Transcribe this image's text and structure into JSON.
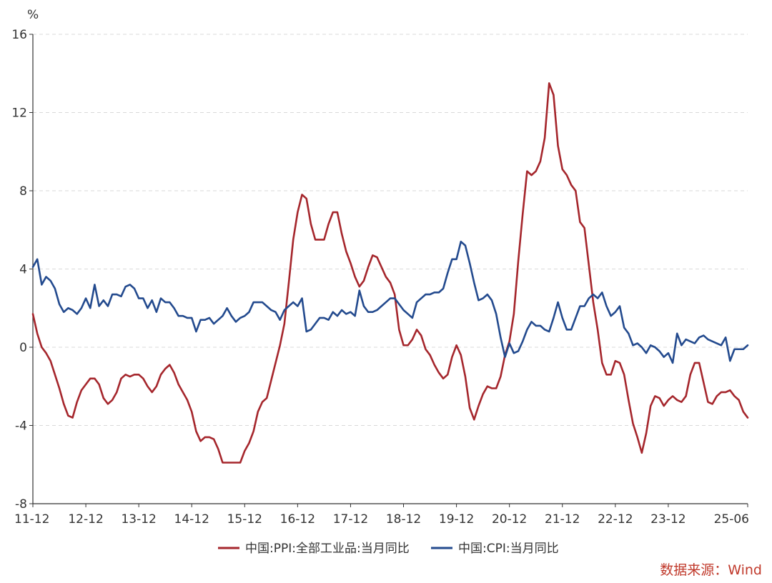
{
  "chart_data": {
    "type": "line",
    "unit_label": "%",
    "ylim": [
      -8,
      16
    ],
    "y_ticks": [
      16,
      12,
      8,
      4,
      0,
      -4,
      -8
    ],
    "x_ticks": [
      "11-12",
      "12-12",
      "13-12",
      "14-12",
      "15-12",
      "16-12",
      "17-12",
      "18-12",
      "19-12",
      "20-12",
      "21-12",
      "22-12",
      "23-12",
      "25-06"
    ],
    "x_tick_index": [
      0,
      12,
      24,
      36,
      48,
      60,
      72,
      84,
      96,
      108,
      120,
      132,
      144,
      162
    ],
    "grid": "horizontal-dashed",
    "legend_position": "bottom",
    "series": [
      {
        "name": "中国:PPI:全部工业品:当月同比",
        "color": "#a5262c",
        "values": [
          1.7,
          0.7,
          0.0,
          -0.3,
          -0.7,
          -1.4,
          -2.1,
          -2.9,
          -3.5,
          -3.6,
          -2.8,
          -2.2,
          -1.9,
          -1.6,
          -1.6,
          -1.9,
          -2.6,
          -2.9,
          -2.7,
          -2.3,
          -1.6,
          -1.4,
          -1.5,
          -1.4,
          -1.4,
          -1.6,
          -2.0,
          -2.3,
          -2.0,
          -1.4,
          -1.1,
          -0.9,
          -1.3,
          -1.9,
          -2.3,
          -2.7,
          -3.3,
          -4.3,
          -4.8,
          -4.6,
          -4.6,
          -4.7,
          -5.2,
          -5.9,
          -5.9,
          -5.9,
          -5.9,
          -5.9,
          -5.3,
          -4.9,
          -4.3,
          -3.3,
          -2.8,
          -2.6,
          -1.7,
          -0.8,
          0.1,
          1.2,
          3.3,
          5.5,
          6.9,
          7.8,
          7.6,
          6.3,
          5.5,
          5.5,
          5.5,
          6.3,
          6.9,
          6.9,
          5.8,
          4.9,
          4.3,
          3.6,
          3.1,
          3.4,
          4.1,
          4.7,
          4.6,
          4.1,
          3.6,
          3.3,
          2.7,
          0.9,
          0.1,
          0.1,
          0.4,
          0.9,
          0.6,
          -0.1,
          -0.4,
          -0.9,
          -1.3,
          -1.6,
          -1.4,
          -0.5,
          0.1,
          -0.4,
          -1.5,
          -3.1,
          -3.7,
          -3.0,
          -2.4,
          -2.0,
          -2.1,
          -2.1,
          -1.5,
          -0.4,
          0.3,
          1.7,
          4.4,
          6.8,
          9.0,
          8.8,
          9.0,
          9.5,
          10.7,
          13.5,
          12.9,
          10.3,
          9.1,
          8.8,
          8.3,
          8.0,
          6.4,
          6.1,
          4.2,
          2.3,
          0.9,
          -0.8,
          -1.4,
          -1.4,
          -0.7,
          -0.8,
          -1.4,
          -2.7,
          -3.9,
          -4.6,
          -5.4,
          -4.4,
          -3.0,
          -2.5,
          -2.6,
          -3.0,
          -2.7,
          -2.5,
          -2.7,
          -2.8,
          -2.5,
          -1.4,
          -0.8,
          -0.8,
          -1.8,
          -2.8,
          -2.9,
          -2.5,
          -2.3,
          -2.3,
          -2.2,
          -2.5,
          -2.7,
          -3.3,
          -3.6
        ]
      },
      {
        "name": "中国:CPI:当月同比",
        "color": "#234a8e",
        "values": [
          4.1,
          4.5,
          3.2,
          3.6,
          3.4,
          3.0,
          2.2,
          1.8,
          2.0,
          1.9,
          1.7,
          2.0,
          2.5,
          2.0,
          3.2,
          2.1,
          2.4,
          2.1,
          2.7,
          2.7,
          2.6,
          3.1,
          3.2,
          3.0,
          2.5,
          2.5,
          2.0,
          2.4,
          1.8,
          2.5,
          2.3,
          2.3,
          2.0,
          1.6,
          1.6,
          1.5,
          1.5,
          0.8,
          1.4,
          1.4,
          1.5,
          1.2,
          1.4,
          1.6,
          2.0,
          1.6,
          1.3,
          1.5,
          1.6,
          1.8,
          2.3,
          2.3,
          2.3,
          2.1,
          1.9,
          1.8,
          1.4,
          1.9,
          2.1,
          2.3,
          2.1,
          2.5,
          0.8,
          0.9,
          1.2,
          1.5,
          1.5,
          1.4,
          1.8,
          1.6,
          1.9,
          1.7,
          1.8,
          1.6,
          2.9,
          2.1,
          1.8,
          1.8,
          1.9,
          2.1,
          2.3,
          2.5,
          2.5,
          2.2,
          1.9,
          1.7,
          1.5,
          2.3,
          2.5,
          2.7,
          2.7,
          2.8,
          2.8,
          3.0,
          3.8,
          4.5,
          4.5,
          5.4,
          5.2,
          4.3,
          3.3,
          2.4,
          2.5,
          2.7,
          2.4,
          1.7,
          0.5,
          -0.5,
          0.2,
          -0.3,
          -0.2,
          0.3,
          0.9,
          1.3,
          1.1,
          1.1,
          0.9,
          0.8,
          1.5,
          2.3,
          1.5,
          0.9,
          0.9,
          1.5,
          2.1,
          2.1,
          2.5,
          2.7,
          2.5,
          2.8,
          2.1,
          1.6,
          1.8,
          2.1,
          1.0,
          0.7,
          0.1,
          0.2,
          0.0,
          -0.3,
          0.1,
          0.0,
          -0.2,
          -0.5,
          -0.3,
          -0.8,
          0.7,
          0.1,
          0.4,
          0.3,
          0.2,
          0.5,
          0.6,
          0.4,
          0.3,
          0.2,
          0.1,
          0.5,
          -0.7,
          -0.1,
          -0.1,
          -0.1,
          0.1
        ]
      }
    ]
  },
  "source_label": "数据来源：Wind"
}
